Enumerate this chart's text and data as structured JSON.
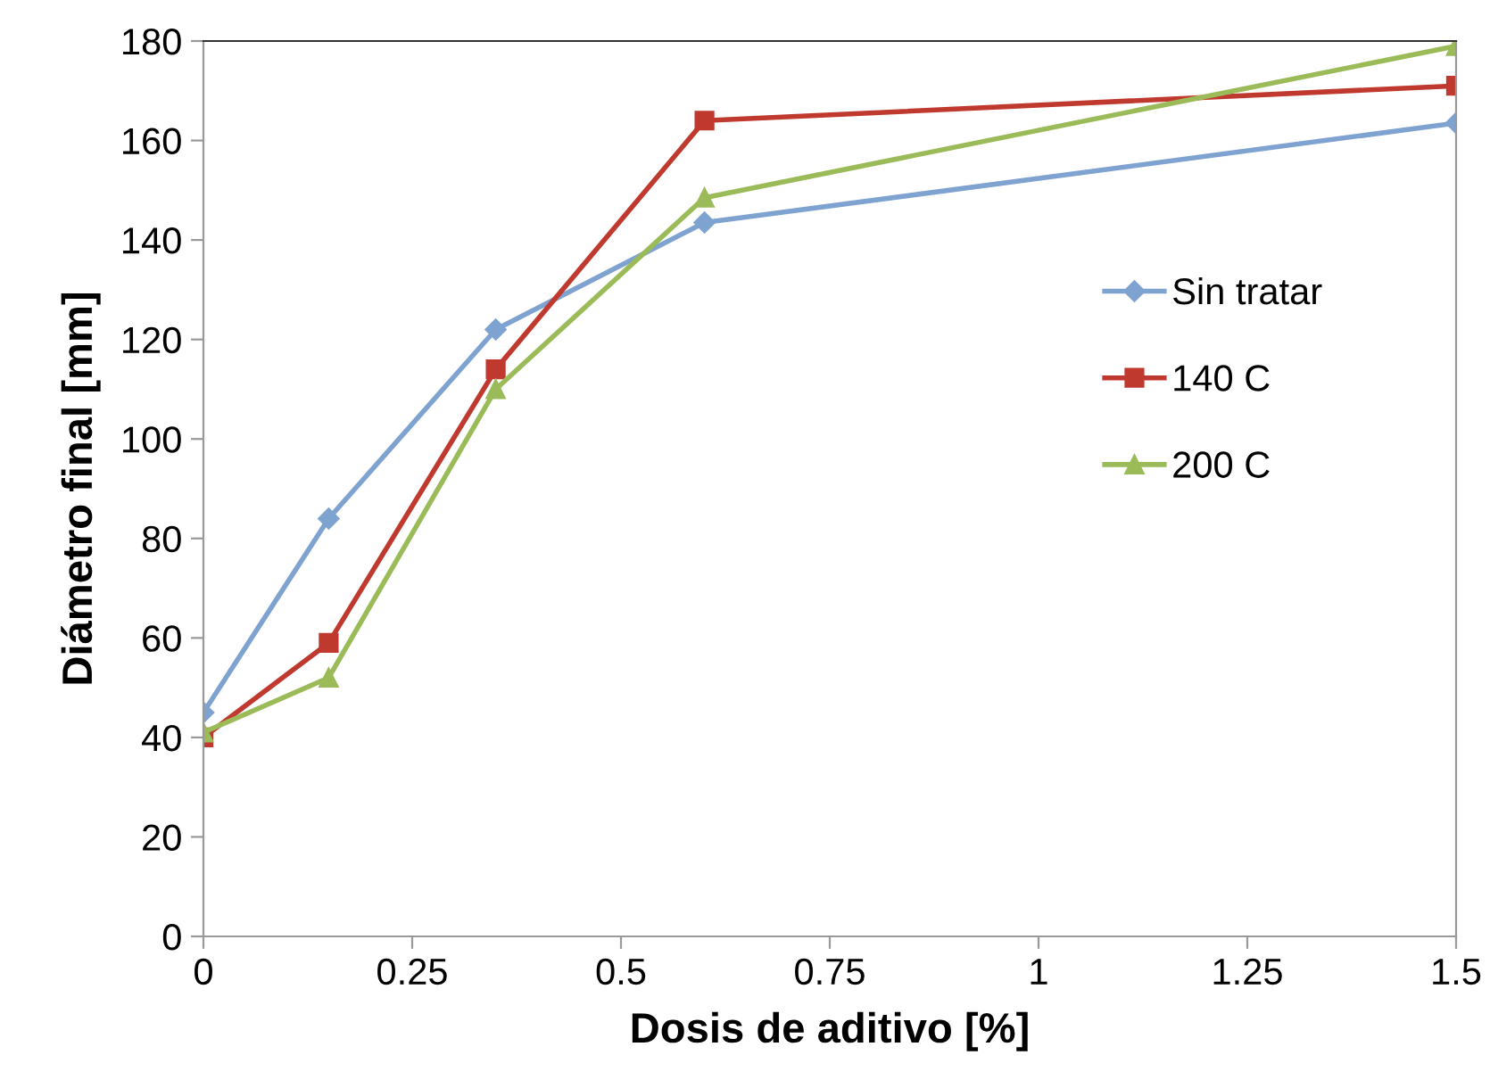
{
  "chart_data": {
    "type": "line",
    "xlabel": "Dosis de aditivo [%]",
    "ylabel": "Diámetro final [mm]",
    "x": [
      0,
      0.15,
      0.35,
      0.6,
      1.5
    ],
    "series": [
      {
        "name": "Sin tratar",
        "color": "#7fa3d0",
        "marker": "diamond",
        "values": [
          45,
          84,
          122,
          143.5,
          163.5
        ]
      },
      {
        "name": "140 C",
        "color": "#c0392f",
        "marker": "square",
        "values": [
          40,
          59,
          114,
          164,
          171
        ]
      },
      {
        "name": "200 C",
        "color": "#9bbb59",
        "marker": "triangle",
        "values": [
          41,
          52,
          110,
          148.5,
          179
        ]
      }
    ],
    "xlim": [
      0,
      1.5
    ],
    "xticks": [
      0,
      0.25,
      0.5,
      0.75,
      1,
      1.25,
      1.5
    ],
    "ylim": [
      0,
      180
    ],
    "yticks": [
      0,
      20,
      40,
      60,
      80,
      100,
      120,
      140,
      160,
      180
    ],
    "grid": false,
    "legend": "right",
    "line_style": "solid"
  }
}
